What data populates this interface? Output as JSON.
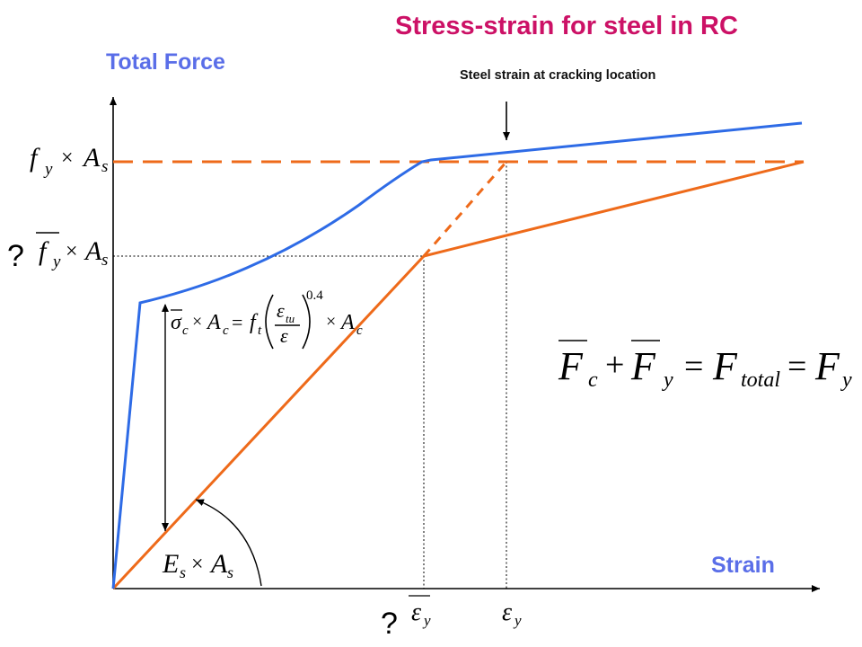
{
  "title": "Stress-strain for steel in RC",
  "y_axis_label": "Total Force",
  "x_axis_label": "Strain",
  "crack_note": "Steel strain at cracking location",
  "question_mark": "?",
  "colors": {
    "title": "#cc1166",
    "axis_label": "#5a6ee8",
    "steel_curve": "#2e6be6",
    "bare_bar": "#ee6a1a",
    "axes": "#000000",
    "guide": "#000000"
  },
  "labels": {
    "fy_as": {
      "f": "f",
      "sub_y": "y",
      "times": "×",
      "A": "A",
      "sub_s": "s"
    },
    "fy_bar_as": {
      "f": "f",
      "sub_y": "y",
      "times": "×",
      "A": "A",
      "sub_s": "s"
    },
    "sigma_c": {
      "sigma": "σ",
      "sub_c": "c",
      "times": "×",
      "A": "A",
      "eq": "=",
      "f": "f",
      "sub_t": "t",
      "eps_top": "ε",
      "sub_tu": "tu",
      "eps_bottom": "ε",
      "exponent": "0.4",
      "A2": "A",
      "sub_c2": "c"
    },
    "es_as": {
      "E": "E",
      "sub_s": "s",
      "times": "×",
      "A": "A",
      "sub_s2": "s"
    },
    "eps_bar_y": {
      "eps": "ε",
      "sub": "y"
    },
    "eps_y": {
      "eps": "ε",
      "sub": "y"
    },
    "balance": {
      "F1": "F",
      "sub_c": "c",
      "plus": "+",
      "F2": "F",
      "sub_y": "y",
      "eq1": "=",
      "F3": "F",
      "sub_total": "total",
      "eq2": "=",
      "F4": "F",
      "sub_y2": "y"
    }
  }
}
